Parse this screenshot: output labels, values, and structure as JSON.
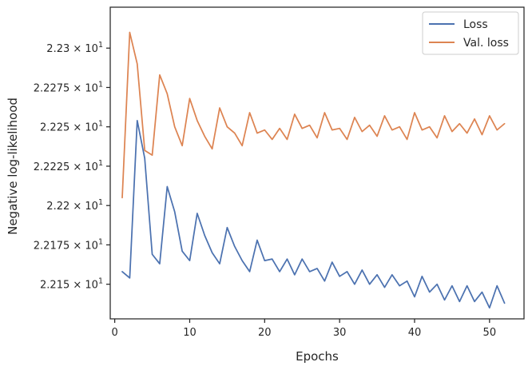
{
  "chart_data": {
    "type": "line",
    "xlabel": "Epochs",
    "ylabel": "Negative log-likelihood",
    "xlim": [
      -0.6,
      54.6
    ],
    "ylim": [
      22.128,
      22.326
    ],
    "xticks": [
      0,
      10,
      20,
      30,
      40,
      50
    ],
    "xtick_labels": [
      "0",
      "10",
      "20",
      "30",
      "40",
      "50"
    ],
    "yticks": [
      22.15,
      22.175,
      22.2,
      22.225,
      22.25,
      22.275,
      22.3
    ],
    "ytick_labels": [
      {
        "mant": "2.215",
        "exp": "1"
      },
      {
        "mant": "2.2175",
        "exp": "1"
      },
      {
        "mant": "2.22",
        "exp": "1"
      },
      {
        "mant": "2.2225",
        "exp": "1"
      },
      {
        "mant": "2.225",
        "exp": "1"
      },
      {
        "mant": "2.2275",
        "exp": "1"
      },
      {
        "mant": "2.23",
        "exp": "1"
      }
    ],
    "tick_base": "× 10",
    "grid": false,
    "legend_position": "top-right",
    "x": [
      1,
      2,
      3,
      4,
      5,
      6,
      7,
      8,
      9,
      10,
      11,
      12,
      13,
      14,
      15,
      16,
      17,
      18,
      19,
      20,
      21,
      22,
      23,
      24,
      25,
      26,
      27,
      28,
      29,
      30,
      31,
      32,
      33,
      34,
      35,
      36,
      37,
      38,
      39,
      40,
      41,
      42,
      43,
      44,
      45,
      46,
      47,
      48,
      49,
      50,
      51,
      52
    ],
    "series": [
      {
        "name": "Loss",
        "color": "#4c72b0",
        "values": [
          22.158,
          22.154,
          22.254,
          22.23,
          22.169,
          22.163,
          22.212,
          22.196,
          22.171,
          22.165,
          22.195,
          22.181,
          22.17,
          22.163,
          22.186,
          22.174,
          22.165,
          22.158,
          22.178,
          22.165,
          22.166,
          22.158,
          22.166,
          22.156,
          22.166,
          22.158,
          22.16,
          22.152,
          22.164,
          22.155,
          22.158,
          22.15,
          22.159,
          22.15,
          22.156,
          22.148,
          22.156,
          22.149,
          22.152,
          22.142,
          22.155,
          22.145,
          22.15,
          22.14,
          22.149,
          22.139,
          22.149,
          22.139,
          22.145,
          22.135,
          22.149,
          22.138
        ]
      },
      {
        "name": "Val. loss",
        "color": "#dd8452",
        "values": [
          22.205,
          22.31,
          22.29,
          22.235,
          22.232,
          22.283,
          22.271,
          22.25,
          22.238,
          22.268,
          22.254,
          22.244,
          22.236,
          22.262,
          22.25,
          22.246,
          22.238,
          22.259,
          22.246,
          22.248,
          22.242,
          22.249,
          22.242,
          22.258,
          22.249,
          22.251,
          22.243,
          22.259,
          22.248,
          22.249,
          22.242,
          22.256,
          22.247,
          22.251,
          22.244,
          22.257,
          22.248,
          22.25,
          22.242,
          22.259,
          22.248,
          22.25,
          22.243,
          22.257,
          22.247,
          22.252,
          22.246,
          22.255,
          22.245,
          22.257,
          22.248,
          22.252
        ]
      }
    ]
  }
}
